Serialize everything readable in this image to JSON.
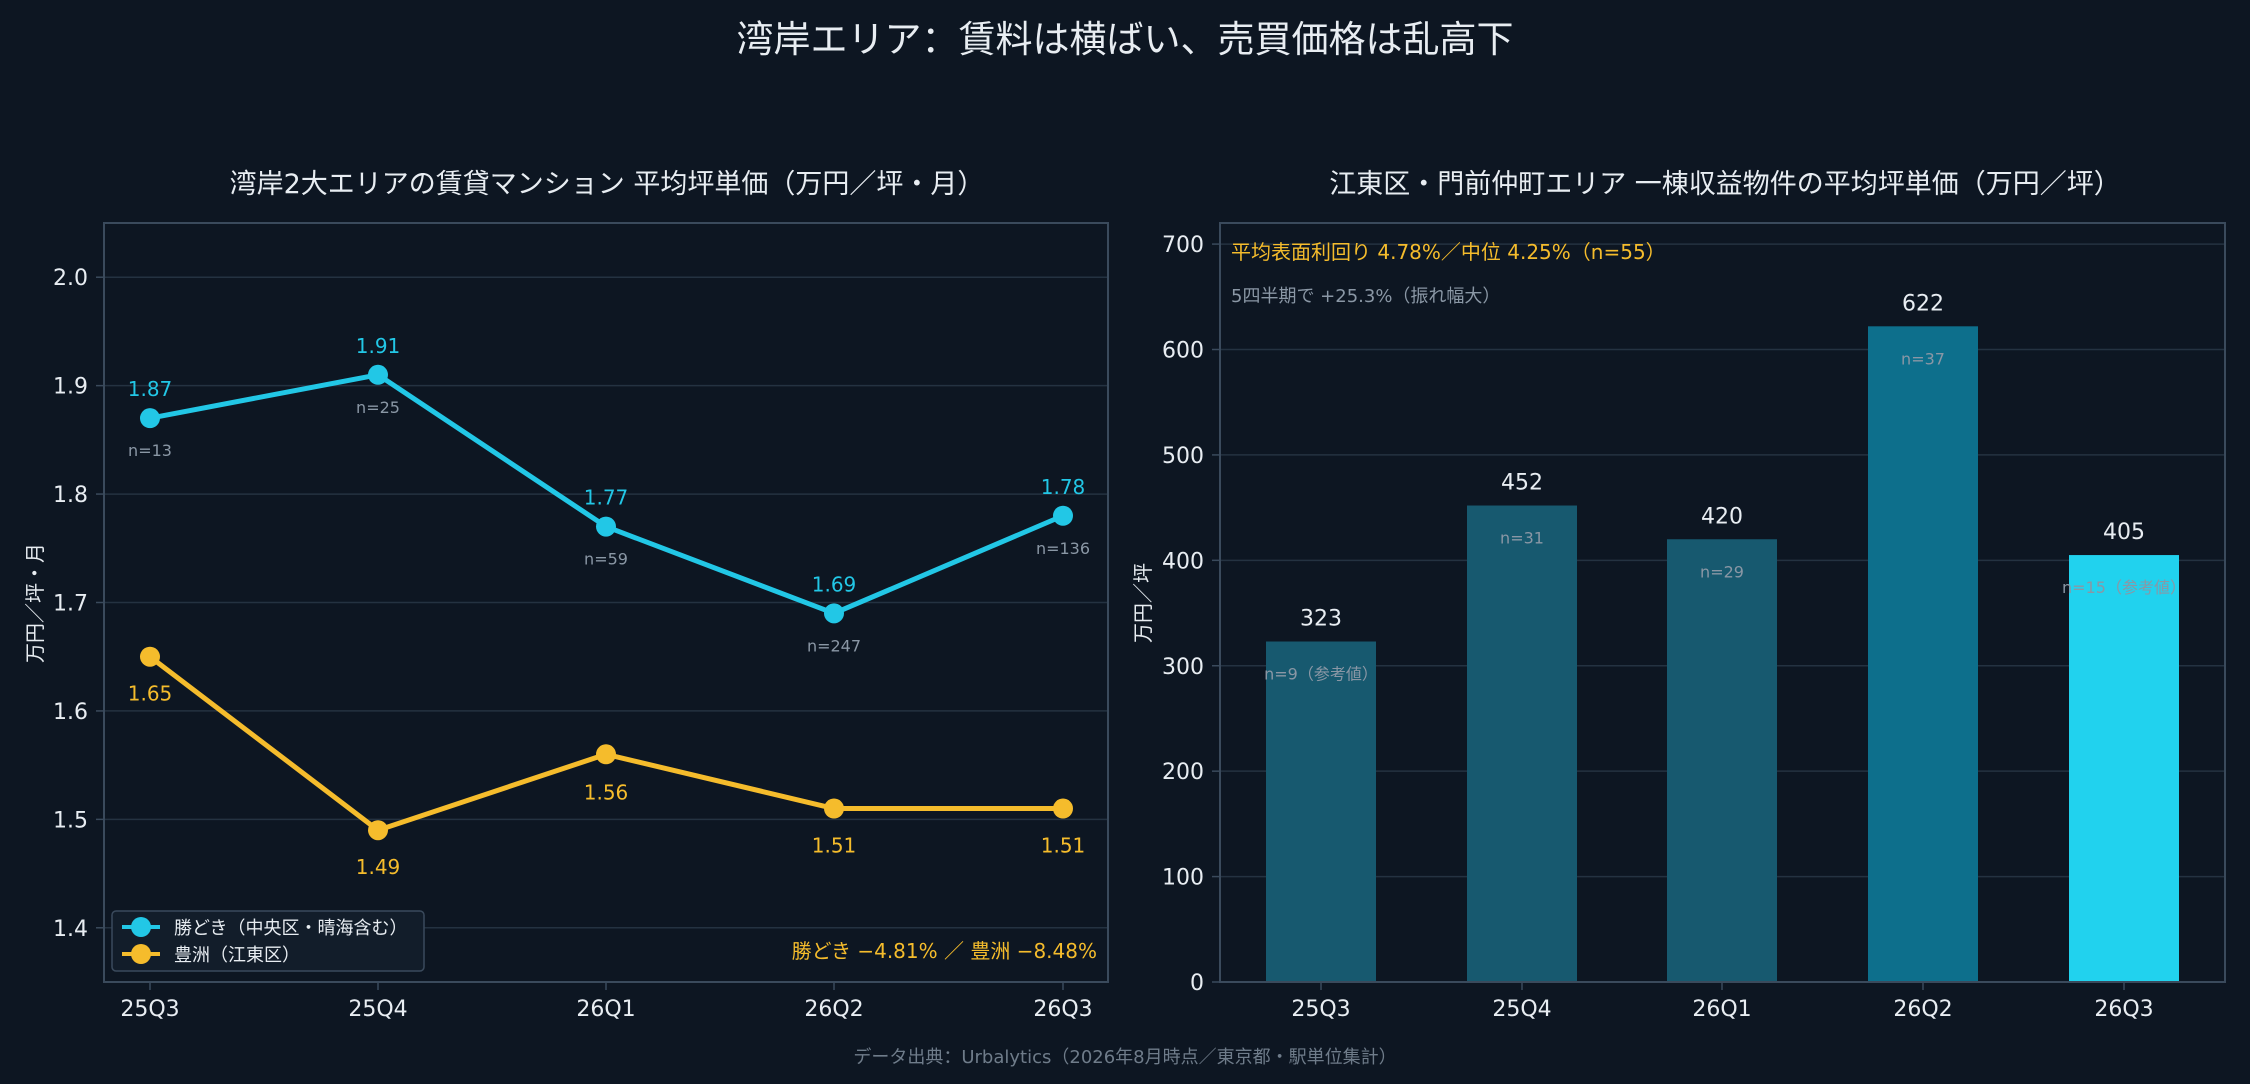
{
  "title": "湾岸エリア：賃料は横ばい、売買価格は乱高下",
  "footer": "データ出典：Urbalytics（2026年8月時点／東京都・駅単位集計）",
  "colors": {
    "background": "#0d1622",
    "text": "#e8edf2",
    "grid": "#243241",
    "frame": "#3a4a5c",
    "muted": "#8a97a5",
    "cyan": "#22c7e6",
    "yellow": "#f5bc2c",
    "bar_dark": "#17596f",
    "bar_mid": "#0d6f8c",
    "bar_bright": "#21d2ee"
  },
  "chart_data": [
    {
      "type": "line",
      "title": "湾岸2大エリアの賃貸マンション 平均坪単価（万円／坪・月）",
      "ylabel": "万円／坪・月",
      "categories": [
        "25Q3",
        "25Q4",
        "26Q1",
        "26Q2",
        "26Q3"
      ],
      "ylim": [
        1.35,
        2.05
      ],
      "yticks": [
        "1.4",
        "1.5",
        "1.6",
        "1.7",
        "1.8",
        "1.9",
        "2.0"
      ],
      "grid": true,
      "legend_position": "bottom-left",
      "series": [
        {
          "name": "勝どき（中央区・晴海含む）",
          "values": [
            1.87,
            1.91,
            1.77,
            1.69,
            1.78
          ],
          "value_labels": [
            "1.87",
            "1.91",
            "1.77",
            "1.69",
            "1.78"
          ],
          "n_labels": [
            "n=13",
            "n=25",
            "n=59",
            "n=247",
            "n=136"
          ],
          "color": "#22c7e6"
        },
        {
          "name": "豊洲（江東区）",
          "values": [
            1.65,
            1.49,
            1.56,
            1.51,
            1.51
          ],
          "value_labels": [
            "1.65",
            "1.49",
            "1.56",
            "1.51",
            "1.51"
          ],
          "color": "#f5bc2c"
        }
      ],
      "annotation": "勝どき −4.81% ／ 豊洲 −8.48%"
    },
    {
      "type": "bar",
      "title": "江東区・門前仲町エリア 一棟収益物件の平均坪単価（万円／坪）",
      "ylabel": "万円／坪",
      "categories": [
        "25Q3",
        "25Q4",
        "26Q1",
        "26Q2",
        "26Q3"
      ],
      "values": [
        323,
        452,
        420,
        622,
        405
      ],
      "value_labels": [
        "323",
        "452",
        "420",
        "622",
        "405"
      ],
      "n_labels": [
        "n=9（参考値）",
        "n=31",
        "n=29",
        "n=37",
        "n=15（参考値）"
      ],
      "bar_colors": [
        "#17596f",
        "#17596f",
        "#17596f",
        "#0d6f8c",
        "#21d2ee"
      ],
      "ylim": [
        0,
        720
      ],
      "yticks": [
        "0",
        "100",
        "200",
        "300",
        "400",
        "500",
        "600",
        "700"
      ],
      "grid": true,
      "annotations": [
        "平均表面利回り 4.78%／中位 4.25%（n=55）",
        "5四半期で +25.3%（振れ幅大）"
      ]
    }
  ]
}
